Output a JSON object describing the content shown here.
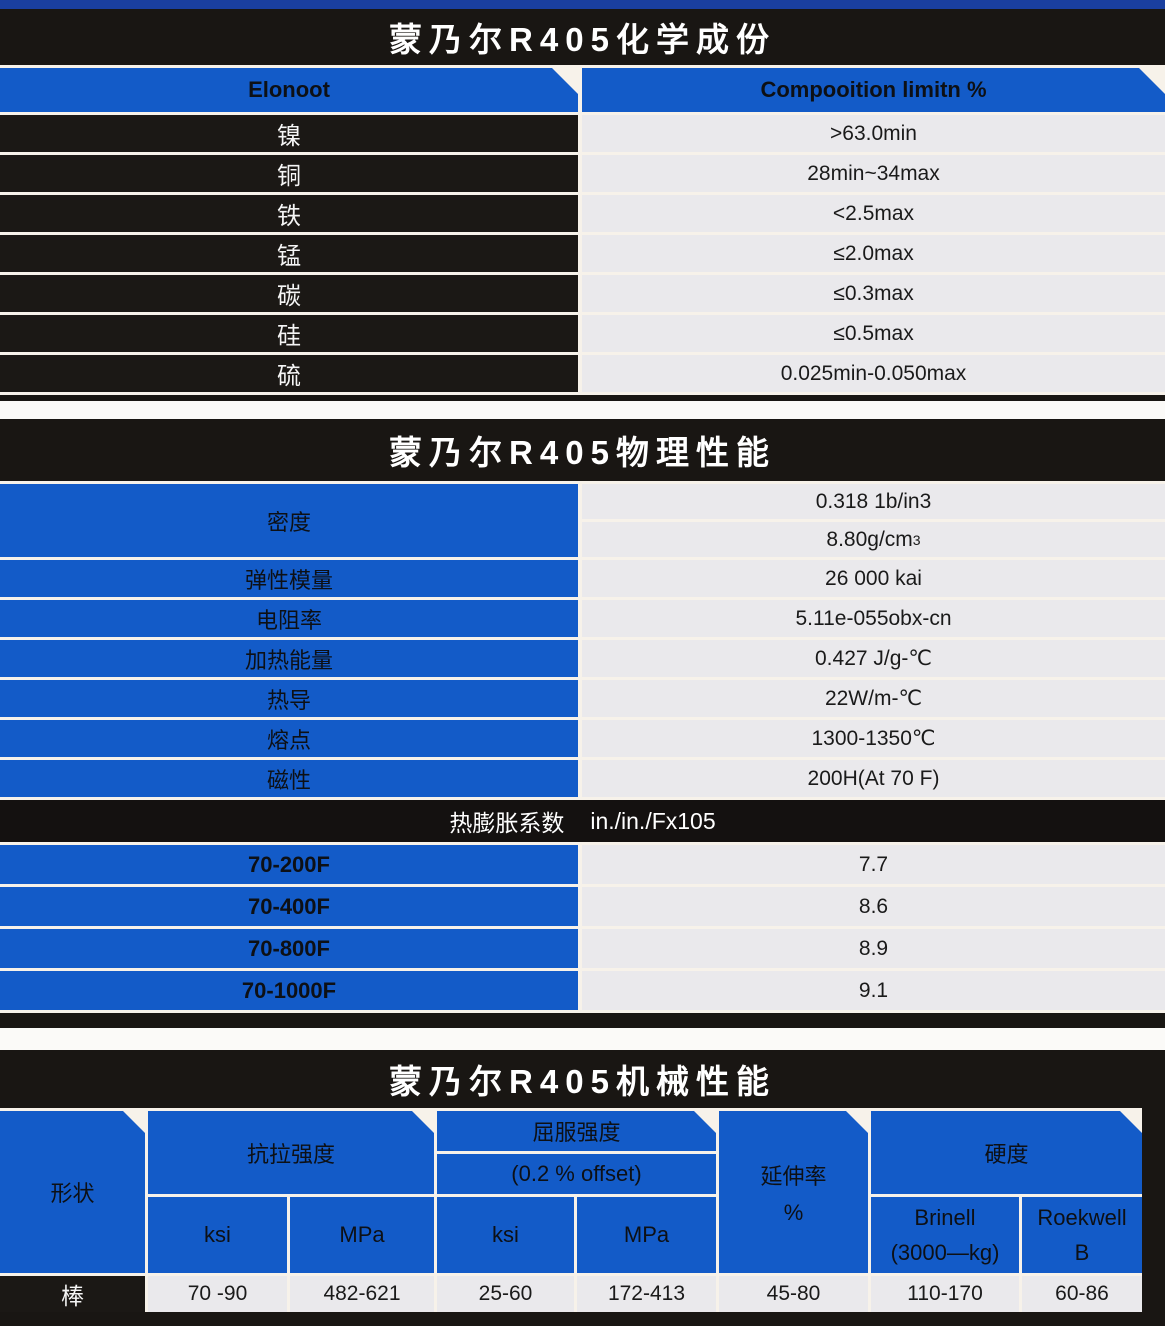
{
  "colors": {
    "accent_blue": "#135bc8",
    "panel_black": "#191613",
    "cell_gray": "#eae9ec",
    "separator_white": "#f7f2ea",
    "top_bar_blue": "#1a3f9f"
  },
  "chemical_table": {
    "title": "蒙乃尔R405化学成份",
    "header": {
      "element": "Elonoot",
      "limit": "Compooition limitn %"
    },
    "rows": [
      {
        "element": "镍",
        "value": ">63.0min"
      },
      {
        "element": "铜",
        "value": "28min~34max"
      },
      {
        "element": "铁",
        "value": "<2.5max"
      },
      {
        "element": "锰",
        "value": "≤2.0max"
      },
      {
        "element": "碳",
        "value": "≤0.3max"
      },
      {
        "element": "硅",
        "value": "≤0.5max"
      },
      {
        "element": "硫",
        "value": "0.025min-0.050max"
      }
    ]
  },
  "physical_table": {
    "title": "蒙乃尔R405物理性能",
    "density_row": {
      "label": "密度",
      "value1": "0.318 1b/in3",
      "value2": "8.80g/cm",
      "value2_sup": "3"
    },
    "rows": [
      {
        "label": "弹性模量",
        "value": "26 000 kai"
      },
      {
        "label": "电阻率",
        "value": "5.11e-055obx-cn"
      },
      {
        "label": "加热能量",
        "value": "0.427 J/g-℃"
      },
      {
        "label": "热导",
        "value": "22W/m-℃"
      },
      {
        "label": "熔点",
        "value": "1300-1350℃"
      },
      {
        "label": "磁性",
        "value": "200H(At 70 F)"
      }
    ],
    "expansion": {
      "label": "热膨胀系数",
      "unit": "in./in./Fx105"
    },
    "expansion_rows": [
      {
        "label": "70-200F",
        "value": "7.7"
      },
      {
        "label": "70-400F",
        "value": "8.6"
      },
      {
        "label": "70-800F",
        "value": "8.9"
      },
      {
        "label": "70-1000F",
        "value": "9.1"
      }
    ]
  },
  "mechanical_table": {
    "title": "蒙乃尔R405机械性能",
    "headers": {
      "shape": "形状",
      "tensile": "抗拉强度",
      "yield_line1": "屈服强度",
      "yield_line2": "(0.2 % offset)",
      "elongation_line1": "延伸率",
      "elongation_line2": "%",
      "hardness": "硬度",
      "tensile_ksi": "ksi",
      "tensile_mpa": "MPa",
      "yield_ksi": "ksi",
      "yield_mpa": "MPa",
      "brinell_line1": "Brinell",
      "brinell_line2": "(3000—kg)",
      "rockwell_line1": "Roekwell",
      "rockwell_line2": "B"
    },
    "row": {
      "shape": "棒",
      "tensile_ksi": "70 -90",
      "tensile_mpa": "482-621",
      "yield_ksi": "25-60",
      "yield_mpa": "172-413",
      "elongation": "45-80",
      "brinell": "110-170",
      "rockwell": "60-86"
    }
  }
}
